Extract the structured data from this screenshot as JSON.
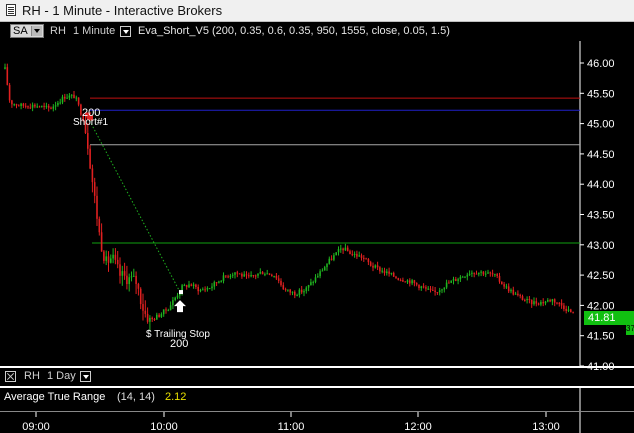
{
  "window": {
    "title": "RH - 1 Minute - Interactive Brokers"
  },
  "toolbar": {
    "sa_label": "SA",
    "symbol": "RH",
    "interval": "1 Minute",
    "study": "Eva_Short_V5 (200,  0.35,  0.6,  0.35,  950,  1555,  close,  0.05,  1.5)"
  },
  "lower_toolbar": {
    "symbol": "RH",
    "interval": "1 Day"
  },
  "indicator": {
    "name": "Average True Range",
    "params": "(14,  14)",
    "value": "2.12"
  },
  "price_axis": {
    "labels": [
      "46.00",
      "45.50",
      "45.00",
      "44.50",
      "44.00",
      "43.50",
      "43.00",
      "42.50",
      "42.00",
      "41.50",
      "41.00"
    ],
    "last_price": "41.81",
    "last_price_side": "37"
  },
  "time_axis": {
    "labels": [
      "09:00",
      "10:00",
      "11:00",
      "12:00",
      "13:00"
    ]
  },
  "annotations": {
    "entry_qty": "200",
    "entry_label": "Short#1",
    "exit_label": "$ Trailing Stop",
    "exit_qty": "200"
  },
  "colors": {
    "up": "#1fb31f",
    "down": "#e02020",
    "level_red": "#c01010",
    "level_blue": "#2020c8",
    "level_gray": "#a8a8a8",
    "level_green": "#10a010"
  },
  "chart_data": {
    "type": "candlestick",
    "x": "time (1-minute bars)",
    "y_range": [
      41.0,
      46.2
    ],
    "levels": [
      45.42,
      45.22,
      44.65,
      43.03
    ],
    "trade": {
      "entry_price": 45.1,
      "exit_price": 42.22
    },
    "last": 41.81
  }
}
